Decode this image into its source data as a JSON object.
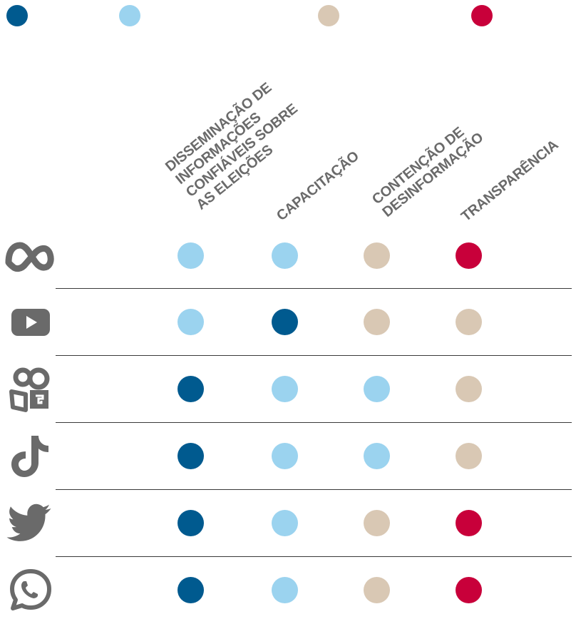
{
  "colors": {
    "dark_blue": "#005a8f",
    "light_blue": "#9bd3ef",
    "beige": "#d9c8b4",
    "red": "#c8003a",
    "icon_gray": "#6a6a6a"
  },
  "legend": [
    {
      "color": "dark_blue"
    },
    {
      "color": "light_blue"
    },
    {
      "color": "beige"
    },
    {
      "color": "red"
    }
  ],
  "columns": [
    {
      "lines": [
        "DISSEMINAÇÃO DE",
        "INFORMAÇÕES",
        "CONFIÁVEIS SOBRE",
        "AS ELEIÇÕES"
      ]
    },
    {
      "lines": [
        "CAPACITAÇÃO"
      ]
    },
    {
      "lines": [
        "CONTENÇÃO DE",
        "DESINFORMAÇÃO"
      ]
    },
    {
      "lines": [
        "TRANSPARÊNCIA"
      ]
    }
  ],
  "rows": [
    {
      "icon": "meta-icon",
      "cells": [
        "light_blue",
        "light_blue",
        "beige",
        "red"
      ]
    },
    {
      "icon": "youtube-icon",
      "cells": [
        "light_blue",
        "dark_blue",
        "beige",
        "beige"
      ]
    },
    {
      "icon": "kwai-icon",
      "cells": [
        "dark_blue",
        "light_blue",
        "light_blue",
        "beige"
      ]
    },
    {
      "icon": "tiktok-icon",
      "cells": [
        "dark_blue",
        "light_blue",
        "light_blue",
        "beige"
      ]
    },
    {
      "icon": "twitter-icon",
      "cells": [
        "dark_blue",
        "light_blue",
        "beige",
        "red"
      ]
    },
    {
      "icon": "whatsapp-icon",
      "cells": [
        "dark_blue",
        "light_blue",
        "beige",
        "red"
      ]
    }
  ]
}
